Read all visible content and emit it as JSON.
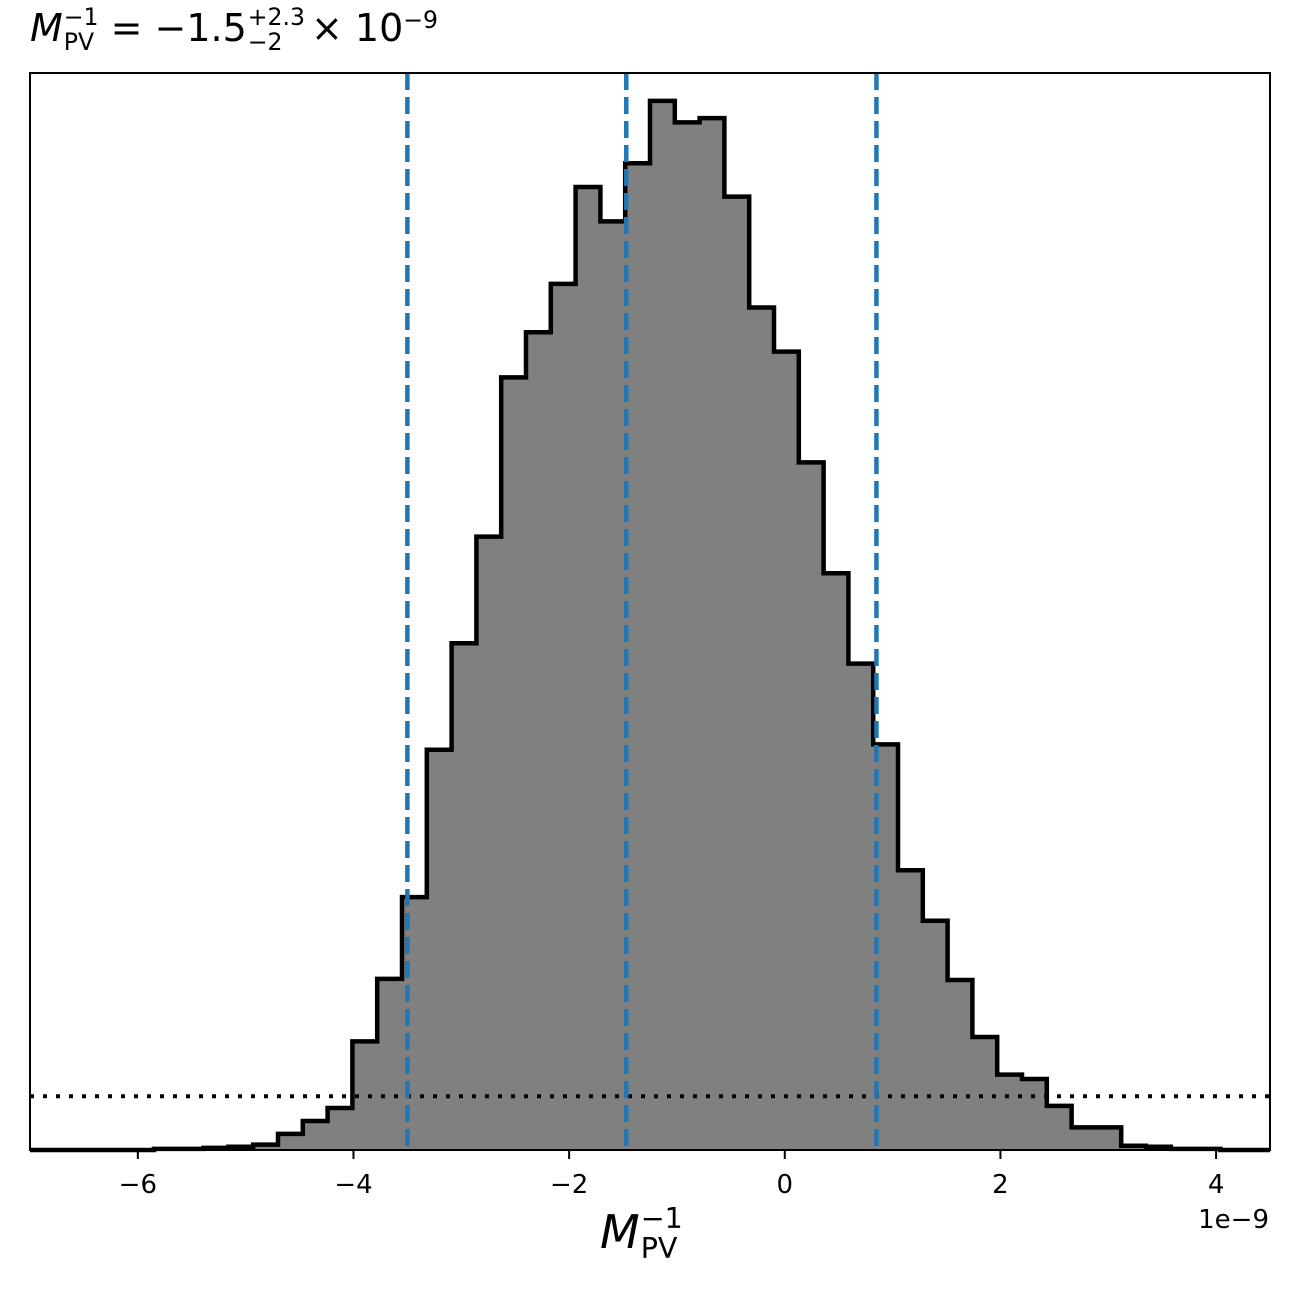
{
  "chart_data": {
    "type": "histogram",
    "title": {
      "symbol": "M",
      "subscript": "PV",
      "superscript": "−1",
      "relation": " = ",
      "value": "−1.5",
      "upper_error": "+2.3",
      "lower_error": "−2",
      "multiplier": "× 10",
      "exponent": "−9"
    },
    "xlabel": {
      "symbol": "M",
      "subscript": "PV",
      "superscript": "−1"
    },
    "x_offset_label": "1e−9",
    "xlim": [
      -7.0,
      4.5
    ],
    "ylim": [
      0,
      1.0
    ],
    "x_ticks": [
      -6,
      -4,
      -2,
      0,
      2,
      4
    ],
    "x_tick_labels": [
      "−6",
      "−4",
      "−2",
      "0",
      "2",
      "4"
    ],
    "y_ticks_visible": false,
    "bin_start": -7.0,
    "bin_width": 0.23,
    "bin_heights": [
      0,
      0,
      0,
      0,
      0,
      0.001,
      0.001,
      0.002,
      0.003,
      0.005,
      0.015,
      0.027,
      0.039,
      0.101,
      0.159,
      0.235,
      0.372,
      0.471,
      0.57,
      0.718,
      0.76,
      0.805,
      0.895,
      0.863,
      0.917,
      0.975,
      0.955,
      0.959,
      0.886,
      0.783,
      0.742,
      0.639,
      0.536,
      0.452,
      0.377,
      0.26,
      0.213,
      0.158,
      0.105,
      0.07,
      0.066,
      0.041,
      0.021,
      0.021,
      0.004,
      0.003,
      0.001,
      0.001,
      0,
      0
    ],
    "fill_color": "#808080",
    "edge_color": "#000000",
    "quantile_lines": [
      -3.5,
      -1.47,
      0.85
    ],
    "quantile_color": "#1f77b4",
    "quantile_style": "dashed",
    "reference_line_y": 0.05,
    "reference_line_style": "dotted"
  }
}
